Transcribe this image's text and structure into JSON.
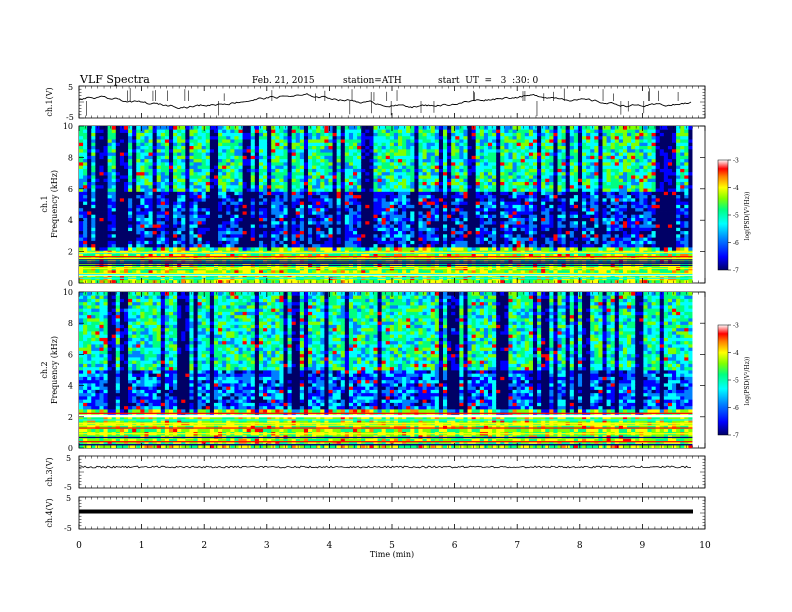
{
  "header": {
    "title": "VLF  Spectra",
    "date": "Feb. 21, 2015",
    "station": "station=ATH",
    "start": "start  UT  =   3  :30: 0"
  },
  "chart_data": [
    {
      "type": "line",
      "panel": "ch1-timeseries",
      "ylabel": "ch.1(V)",
      "ylim": [
        -5,
        5
      ],
      "yticks": [
        "5",
        "-5"
      ],
      "xlim": [
        0,
        10
      ],
      "series": [
        {
          "values_approx": "waveform oscillating around ~0 V between ~-1.5 and 1.5 V, with spikes"
        }
      ]
    },
    {
      "type": "heatmap",
      "panel": "ch1-spectrogram",
      "ylabel": "ch.1\nFrequency (kHz)",
      "ylabel_lines": [
        "ch.1",
        "Frequency  (kHz)"
      ],
      "ylim": [
        0,
        10
      ],
      "yticks": [
        "0",
        "2",
        "4",
        "6",
        "8",
        "10"
      ],
      "xlim": [
        0,
        9.8
      ],
      "colorbar": {
        "label": "log(PSD(V²/Hz))",
        "ticks": [
          "-3",
          "-4",
          "-5",
          "-6",
          "-7"
        ],
        "range": [
          -7,
          -3
        ]
      },
      "bands": [
        {
          "from_khz": 0,
          "to_khz": 2.2,
          "level": -4.5
        },
        {
          "from_khz": 2.2,
          "to_khz": 5.7,
          "level": -6.2
        },
        {
          "from_khz": 5.7,
          "to_khz": 10,
          "level": -5.2
        }
      ]
    },
    {
      "type": "heatmap",
      "panel": "ch2-spectrogram",
      "ylabel": "ch.2\nFrequency (kHz)",
      "ylabel_lines": [
        "ch.2",
        "Frequency  (kHz)"
      ],
      "ylim": [
        0,
        10
      ],
      "yticks": [
        "0",
        "2",
        "4",
        "6",
        "8",
        "10"
      ],
      "xlim": [
        0,
        9.8
      ],
      "colorbar": {
        "label": "log(PSD(V²/Hz))",
        "ticks": [
          "-3",
          "-4",
          "-5",
          "-6",
          "-7"
        ],
        "range": [
          -7,
          -3
        ]
      },
      "bands": [
        {
          "from_khz": 0,
          "to_khz": 2.5,
          "level": -4.5
        },
        {
          "from_khz": 2.5,
          "to_khz": 5.0,
          "level": -6.0
        },
        {
          "from_khz": 5.0,
          "to_khz": 10,
          "level": -5.2
        }
      ]
    },
    {
      "type": "line",
      "panel": "ch3-timeseries",
      "ylabel": "ch.3(V)",
      "ylim": [
        -5,
        5
      ],
      "yticks": [
        "5",
        "-5"
      ],
      "series": [
        {
          "values_approx": "flat near 0 V with small noise"
        }
      ]
    },
    {
      "type": "line",
      "panel": "ch4-timeseries",
      "ylabel": "ch.4(V)",
      "ylim": [
        -5,
        5
      ],
      "yticks": [
        "5",
        "-5"
      ],
      "series": [
        {
          "values_approx": "flat near 0 V, thick noise band"
        }
      ]
    }
  ],
  "xaxis": {
    "label": "Time  (min)",
    "ticks": [
      "0",
      "1",
      "2",
      "3",
      "4",
      "5",
      "6",
      "7",
      "8",
      "9",
      "10"
    ],
    "range": [
      0,
      10
    ]
  },
  "colors": {
    "scale": [
      "#000066",
      "#0000ff",
      "#0080ff",
      "#00ffff",
      "#00ff80",
      "#80ff00",
      "#ffff00",
      "#ff8000",
      "#ff0000",
      "#ffffff"
    ]
  }
}
